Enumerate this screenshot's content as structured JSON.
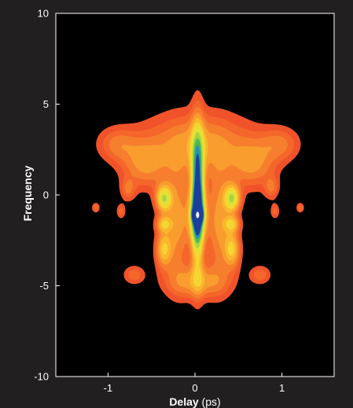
{
  "chart_data": {
    "type": "heatmap",
    "xlabel_bold": "Delay",
    "xlabel_unit": " (ps)",
    "ylabel": "Frequency",
    "xlim": [
      -1.6,
      1.6
    ],
    "ylim": [
      -10,
      10
    ],
    "x_ticks": [
      {
        "value": -1,
        "label": "-1"
      },
      {
        "value": 0,
        "label": "0"
      },
      {
        "value": 1,
        "label": "1"
      }
    ],
    "y_ticks": [
      {
        "value": 10,
        "label": "10"
      },
      {
        "value": 5,
        "label": "5"
      },
      {
        "value": 0,
        "label": "0"
      },
      {
        "value": -5,
        "label": "-5"
      },
      {
        "value": -10,
        "label": "-10"
      }
    ],
    "grid": false,
    "colorscale": "red-orange-yellow-green-blue (low to high)",
    "description_peak": {
      "delay": 0.03,
      "frequency": -1.1
    },
    "contour_levels": [
      0.08,
      0.15,
      0.22,
      0.3,
      0.38,
      0.46,
      0.55,
      0.65,
      0.75,
      0.85,
      0.93
    ],
    "contour_colors": [
      "#f0532b",
      "#f4662b",
      "#f67f2e",
      "#f89d2e",
      "#f9b72e",
      "#f6d532",
      "#e0e238",
      "#a6d63e",
      "#4fb957",
      "#2a8fb8",
      "#1c3f9c"
    ],
    "peak_color": "#ffffff"
  }
}
